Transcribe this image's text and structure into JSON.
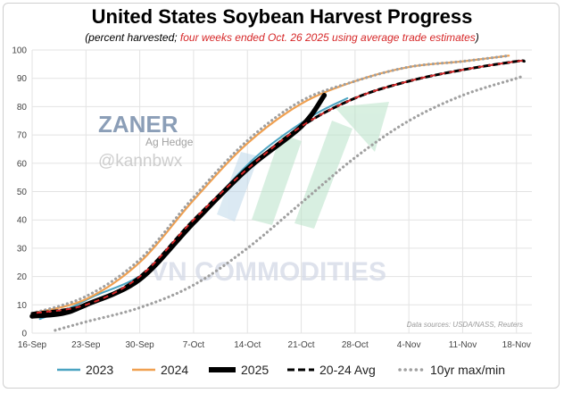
{
  "title": "United States Soybean Harvest Progress",
  "subtitle_a": "(percent harvested; ",
  "subtitle_b": "four weeks ended Oct. 26 2025 using average trade estimates",
  "subtitle_c": ")",
  "watermark": {
    "brand": "ZANER",
    "brand_sub": "Ag Hedge",
    "handle": "@kannbwx",
    "overlay": "VN COMMODITIES"
  },
  "source_note": "Data sources: USDA/NASS, Reuters",
  "colors": {
    "s2023": "#4aa3c1",
    "s2024": "#f0a050",
    "s2025": "#000000",
    "avg": "#000000",
    "avg_dash": "#d62728",
    "maxmin": "#a0a0a0",
    "watermark_brand": "#6f86a6",
    "watermark_green": "#b9e3c9",
    "watermark_blue": "#bfd8ea"
  },
  "chart_data": {
    "type": "line",
    "title": "United States Soybean Harvest Progress",
    "xlabel": "",
    "ylabel": "",
    "ylim": [
      0,
      100
    ],
    "yticks": [
      0,
      10,
      20,
      30,
      40,
      50,
      60,
      70,
      80,
      90,
      100
    ],
    "x_tick_labels": [
      "16-Sep",
      "23-Sep",
      "30-Sep",
      "7-Oct",
      "14-Oct",
      "21-Oct",
      "28-Oct",
      "4-Nov",
      "11-Nov",
      "18-Nov"
    ],
    "x_tick_days": [
      0,
      7,
      14,
      21,
      28,
      35,
      42,
      49,
      56,
      63
    ],
    "grid": true,
    "legend_position": "bottom",
    "series": [
      {
        "name": "2023",
        "key": "s2023",
        "style": "solid",
        "x": [
          1,
          5,
          8,
          15,
          22,
          29,
          36,
          41
        ],
        "y": [
          5,
          9,
          13,
          22,
          42,
          62,
          76,
          83
        ]
      },
      {
        "name": "2024",
        "key": "s2024",
        "style": "solid",
        "x": [
          0,
          7,
          14,
          21,
          28,
          35,
          42,
          49,
          56,
          62
        ],
        "y": [
          7,
          12,
          25,
          47,
          67,
          81,
          89,
          94,
          96,
          98
        ]
      },
      {
        "name": "2025",
        "key": "s2025",
        "style": "thick",
        "x": [
          0,
          4,
          7,
          14,
          21,
          28,
          35,
          38
        ],
        "y": [
          6,
          7,
          10,
          19,
          39,
          58,
          73,
          84
        ]
      },
      {
        "name": "20-24 Avg",
        "key": "avg",
        "style": "dashed",
        "x": [
          0,
          7,
          14,
          21,
          28,
          35,
          42,
          49,
          56,
          63,
          64
        ],
        "y": [
          7,
          10,
          20,
          40,
          58,
          73,
          83,
          89,
          93,
          96,
          96
        ]
      },
      {
        "name": "10yr max/min",
        "key": "maxmin_max",
        "style": "dotted",
        "x": [
          0,
          7,
          14,
          21,
          28,
          35,
          42,
          49,
          56,
          62
        ],
        "y": [
          7,
          13,
          26,
          48,
          68,
          82,
          89,
          94,
          96,
          98
        ]
      },
      {
        "name": "10yr max/min",
        "key": "maxmin_min",
        "style": "dotted",
        "x": [
          3,
          7,
          14,
          21,
          28,
          35,
          42,
          49,
          56,
          63,
          64
        ],
        "y": [
          1,
          4,
          9,
          17,
          30,
          46,
          62,
          75,
          84,
          90,
          91
        ]
      }
    ],
    "legend": [
      "2023",
      "2024",
      "2025",
      "20-24 Avg",
      "10yr max/min"
    ]
  }
}
